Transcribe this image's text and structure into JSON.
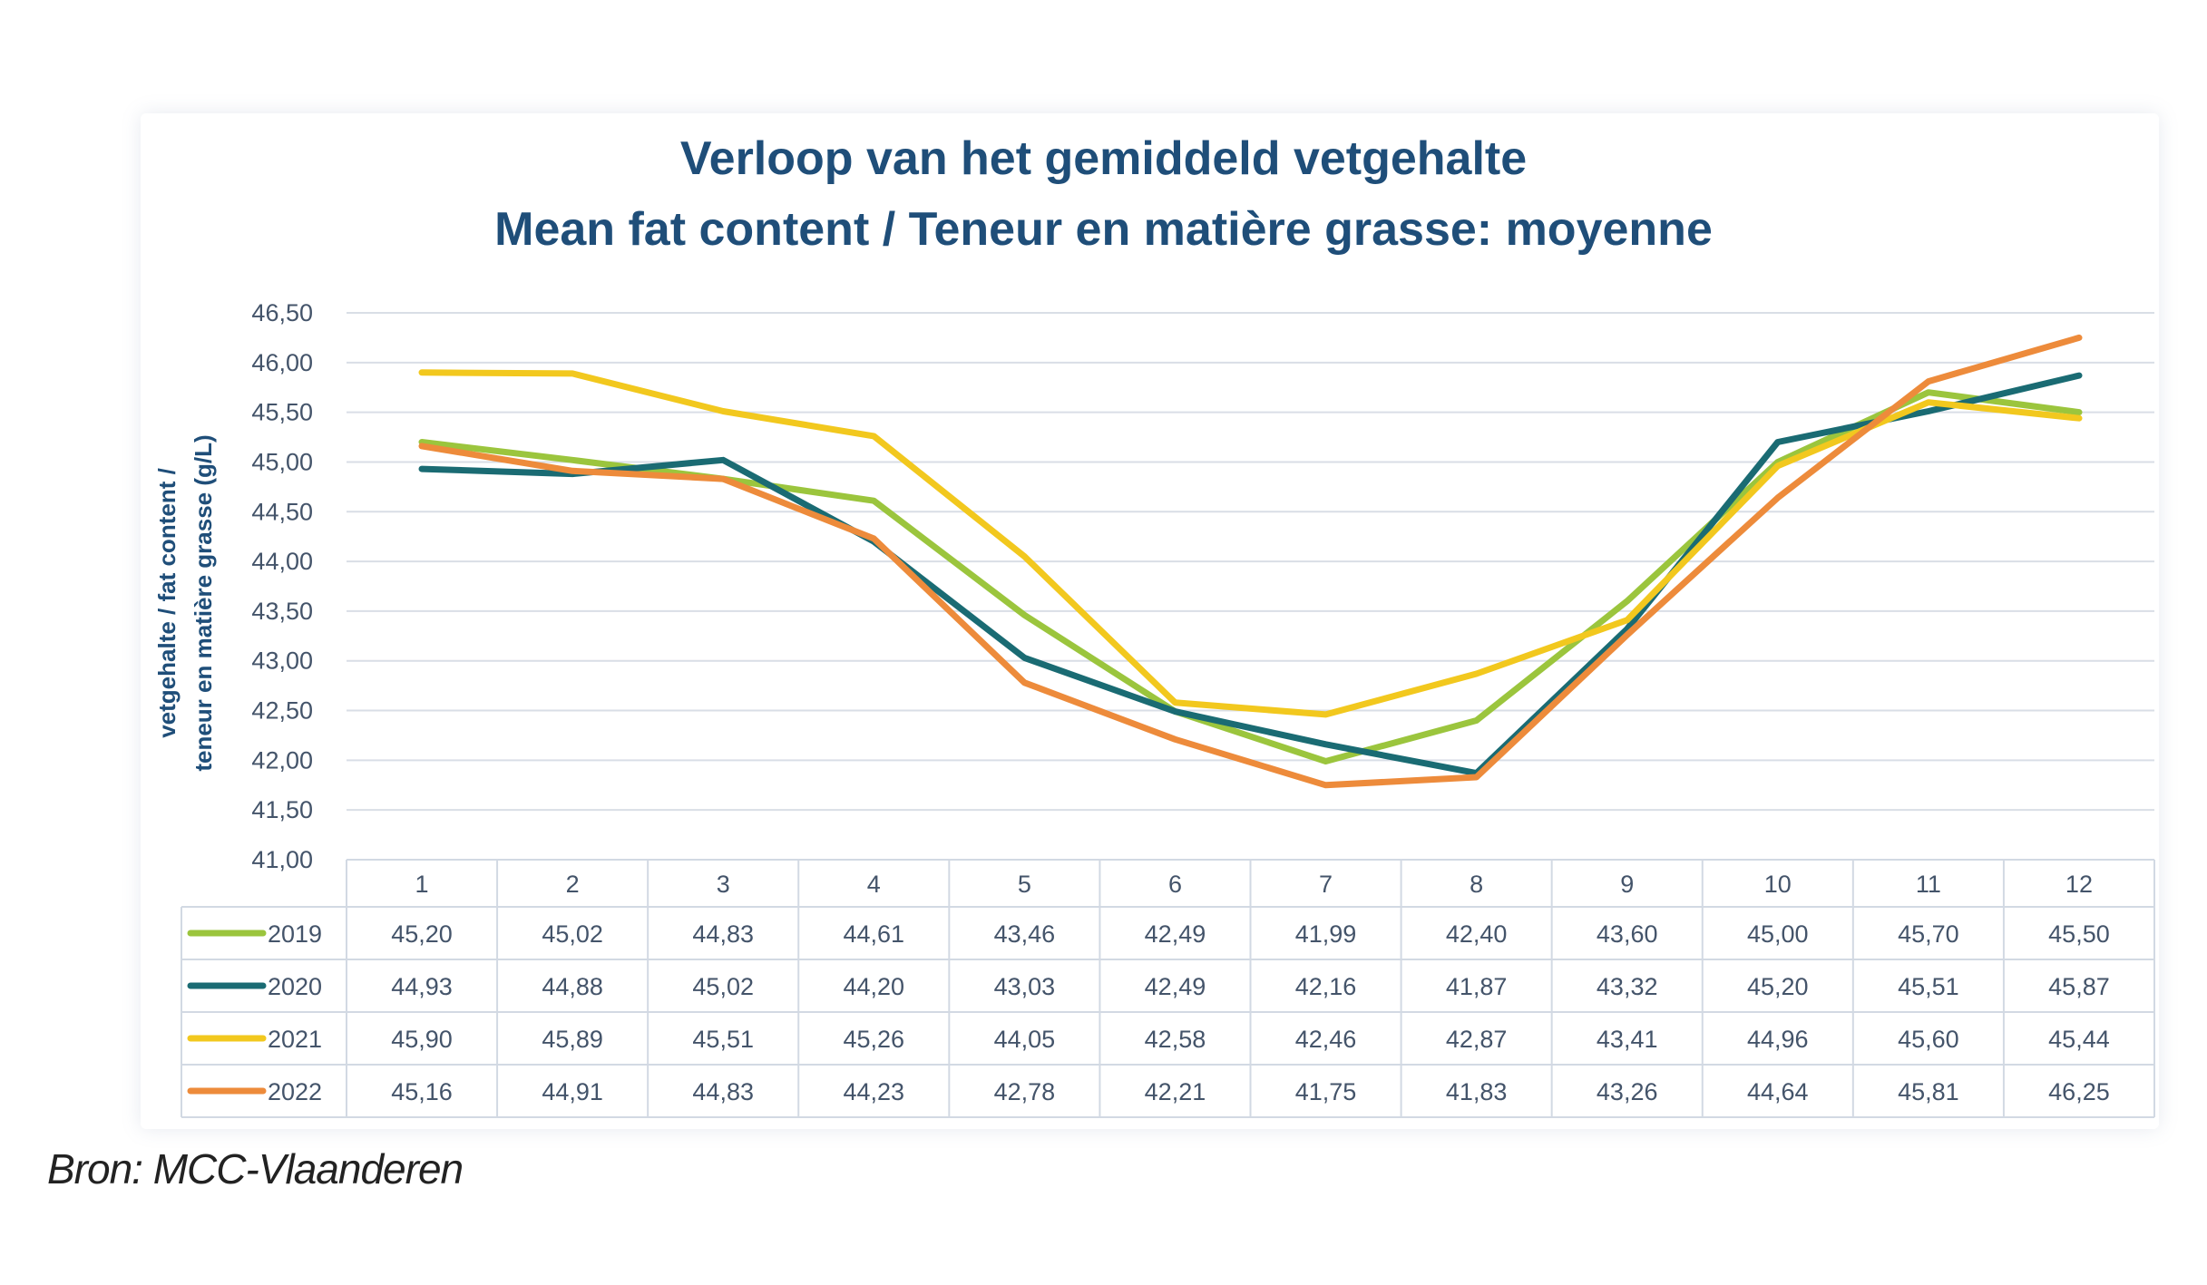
{
  "chart_data": {
    "type": "line",
    "title": "Verloop van het gemiddeld vetgehalte",
    "subtitle": "Mean fat content / Teneur en matière grasse: moyenne",
    "ylabel_line1": "vetgehalte / fat content /",
    "ylabel_line2": "teneur en matière grasse (g/L)",
    "ylim": [
      41.0,
      46.5
    ],
    "yticks": [
      "41,00",
      "41,50",
      "42,00",
      "42,50",
      "43,00",
      "43,50",
      "44,00",
      "44,50",
      "45,00",
      "45,50",
      "46,00",
      "46,50"
    ],
    "categories": [
      "1",
      "2",
      "3",
      "4",
      "5",
      "6",
      "7",
      "8",
      "9",
      "10",
      "11",
      "12"
    ],
    "grid": true,
    "legend": "data-table",
    "series": [
      {
        "name": "2019",
        "color": "#9bc53d",
        "values": [
          45.2,
          45.02,
          44.83,
          44.61,
          43.46,
          42.49,
          41.99,
          42.4,
          43.6,
          45.0,
          45.7,
          45.5
        ],
        "labels": [
          "45,20",
          "45,02",
          "44,83",
          "44,61",
          "43,46",
          "42,49",
          "41,99",
          "42,40",
          "43,60",
          "45,00",
          "45,70",
          "45,50"
        ]
      },
      {
        "name": "2020",
        "color": "#1a6b73",
        "values": [
          44.93,
          44.88,
          45.02,
          44.2,
          43.03,
          42.49,
          42.16,
          41.87,
          43.32,
          45.2,
          45.51,
          45.87
        ],
        "labels": [
          "44,93",
          "44,88",
          "45,02",
          "44,20",
          "43,03",
          "42,49",
          "42,16",
          "41,87",
          "43,32",
          "45,20",
          "45,51",
          "45,87"
        ]
      },
      {
        "name": "2021",
        "color": "#f2c81e",
        "values": [
          45.9,
          45.89,
          45.51,
          45.26,
          44.05,
          42.58,
          42.46,
          42.87,
          43.41,
          44.96,
          45.6,
          45.44
        ],
        "labels": [
          "45,90",
          "45,89",
          "45,51",
          "45,26",
          "44,05",
          "42,58",
          "42,46",
          "42,87",
          "43,41",
          "44,96",
          "45,60",
          "45,44"
        ]
      },
      {
        "name": "2022",
        "color": "#ed8b3b",
        "values": [
          45.16,
          44.91,
          44.83,
          44.23,
          42.78,
          42.21,
          41.75,
          41.83,
          43.26,
          44.64,
          45.81,
          46.25
        ],
        "labels": [
          "45,16",
          "44,91",
          "44,83",
          "44,23",
          "42,78",
          "42,21",
          "41,75",
          "41,83",
          "43,26",
          "44,64",
          "45,81",
          "46,25"
        ]
      }
    ]
  },
  "source": "Bron: MCC-Vlaanderen"
}
